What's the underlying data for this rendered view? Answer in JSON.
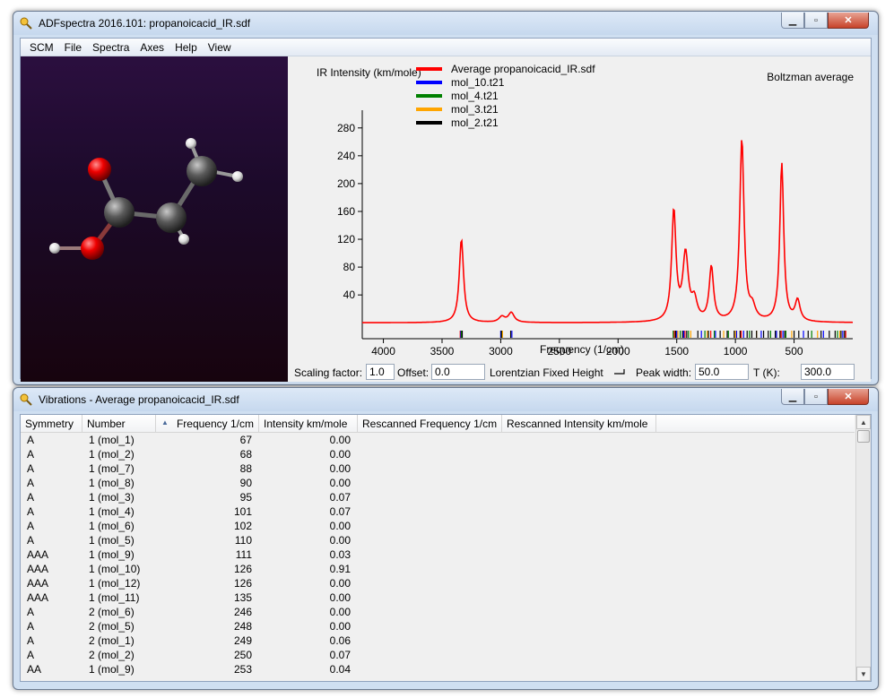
{
  "main_window": {
    "title": "ADFspectra 2016.101: propanoicacid_IR.sdf",
    "menu": [
      "SCM",
      "File",
      "Spectra",
      "Axes",
      "Help",
      "View"
    ]
  },
  "window_controls": {
    "minimize": "▁",
    "maximize": "▫",
    "close": "✕"
  },
  "plot": {
    "ylabel": "IR Intensity (km/mole)",
    "xlabel": "Frequency (1/cm)",
    "annotation": "Boltzman average",
    "legend": [
      {
        "name": "Average propanoicacid_IR.sdf",
        "color": "#ff0000"
      },
      {
        "name": "mol_10.t21",
        "color": "#0000ff"
      },
      {
        "name": "mol_4.t21",
        "color": "#008000"
      },
      {
        "name": "mol_3.t21",
        "color": "#ffa500"
      },
      {
        "name": "mol_2.t21",
        "color": "#000000"
      }
    ]
  },
  "chart_data": {
    "type": "line",
    "x_reversed": true,
    "xlim": [
      4180,
      0
    ],
    "ylim": [
      -10,
      290
    ],
    "yticks": [
      40,
      80,
      120,
      160,
      200,
      240,
      280
    ],
    "xticks": [
      4000,
      3500,
      3000,
      2500,
      2000,
      1500,
      1000,
      500
    ],
    "series": [
      {
        "name": "Average propanoicacid_IR.sdf",
        "color": "#ff0000",
        "peaks": [
          {
            "x": 3335,
            "y": 120,
            "w": 22
          },
          {
            "x": 2990,
            "y": 8,
            "w": 30
          },
          {
            "x": 2910,
            "y": 14,
            "w": 30
          },
          {
            "x": 1525,
            "y": 158,
            "w": 22
          },
          {
            "x": 1425,
            "y": 95,
            "w": 28
          },
          {
            "x": 1350,
            "y": 28,
            "w": 28
          },
          {
            "x": 1205,
            "y": 78,
            "w": 22
          },
          {
            "x": 945,
            "y": 262,
            "w": 22
          },
          {
            "x": 855,
            "y": 18,
            "w": 30
          },
          {
            "x": 605,
            "y": 228,
            "w": 20
          },
          {
            "x": 470,
            "y": 30,
            "w": 25
          }
        ]
      }
    ],
    "stick_positions": {
      "red": [
        3330,
        3345,
        1520,
        1430,
        1210,
        950,
        610,
        60
      ],
      "blue": [
        3340,
        3000,
        2905,
        1500,
        1440,
        1290,
        1170,
        990,
        930,
        780,
        650,
        595,
        420,
        250,
        85
      ],
      "green": [
        3335,
        2990,
        1530,
        1470,
        1400,
        1260,
        1180,
        1060,
        880,
        700,
        570,
        350,
        130
      ],
      "orange": [
        2985,
        1490,
        1380,
        1240,
        1100,
        1000,
        820,
        520,
        300,
        110
      ],
      "black": [
        3328,
        2995,
        2915,
        1510,
        1450,
        1415,
        1320,
        1230,
        1130,
        1070,
        1010,
        960,
        900,
        860,
        820,
        760,
        720,
        660,
        620,
        580,
        500,
        460,
        380,
        270,
        200,
        150,
        100,
        70
      ]
    }
  },
  "controls": {
    "scaling_label": "Scaling factor:",
    "scaling_value": "1.0",
    "offset_label": "Offset:",
    "offset_value": "0.0",
    "lorentzian_label": "Lorentzian Fixed Height",
    "peak_width_label": "Peak width:",
    "peak_width_value": "50.0",
    "temp_label": "T (K):",
    "temp_value": "300.0"
  },
  "vib_window": {
    "title": "Vibrations - Average propanoicacid_IR.sdf",
    "columns": [
      "Symmetry",
      "Number",
      "Frequency 1/cm",
      "Intensity km/mole",
      "Rescanned Frequency 1/cm",
      "Rescanned Intensity km/mole"
    ],
    "sort_indicator": "▲",
    "rows": [
      [
        "A",
        "1 (mol_1)",
        "67",
        "0.00"
      ],
      [
        "A",
        "1 (mol_2)",
        "68",
        "0.00"
      ],
      [
        "A",
        "1 (mol_7)",
        "88",
        "0.00"
      ],
      [
        "A",
        "1 (mol_8)",
        "90",
        "0.00"
      ],
      [
        "A",
        "1 (mol_3)",
        "95",
        "0.07"
      ],
      [
        "A",
        "1 (mol_4)",
        "101",
        "0.07"
      ],
      [
        "A",
        "1 (mol_6)",
        "102",
        "0.00"
      ],
      [
        "A",
        "1 (mol_5)",
        "110",
        "0.00"
      ],
      [
        "AAA",
        "1 (mol_9)",
        "111",
        "0.03"
      ],
      [
        "AAA",
        "1 (mol_10)",
        "126",
        "0.91"
      ],
      [
        "AAA",
        "1 (mol_12)",
        "126",
        "0.00"
      ],
      [
        "AAA",
        "1 (mol_11)",
        "135",
        "0.00"
      ],
      [
        "A",
        "2 (mol_6)",
        "246",
        "0.00"
      ],
      [
        "A",
        "2 (mol_5)",
        "248",
        "0.00"
      ],
      [
        "A",
        "2 (mol_1)",
        "249",
        "0.06"
      ],
      [
        "A",
        "2 (mol_2)",
        "250",
        "0.07"
      ],
      [
        "AA",
        "1 (mol_9)",
        "253",
        "0.04"
      ]
    ]
  }
}
